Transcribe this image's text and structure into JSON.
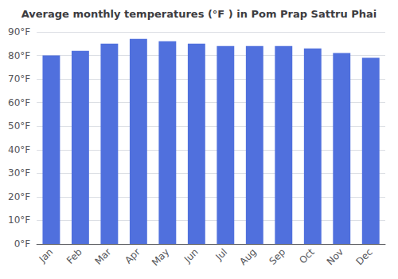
{
  "chart_data": {
    "type": "bar",
    "title": "Average monthly temperatures (°F ) in Pom Prap Sattru Phai",
    "categories": [
      "Jan",
      "Feb",
      "Mar",
      "Apr",
      "May",
      "Jun",
      "Jul",
      "Aug",
      "Sep",
      "Oct",
      "Nov",
      "Dec"
    ],
    "values": [
      80,
      82,
      85,
      87,
      86,
      85,
      84,
      84,
      84,
      83,
      81,
      79
    ],
    "ylim": [
      0,
      90
    ],
    "yticks": [
      {
        "value": 0,
        "label": "0°F"
      },
      {
        "value": 10,
        "label": "10°F"
      },
      {
        "value": 20,
        "label": "20°F"
      },
      {
        "value": 30,
        "label": "30°F"
      },
      {
        "value": 40,
        "label": "40°F"
      },
      {
        "value": 50,
        "label": "50°F"
      },
      {
        "value": 60,
        "label": "60°F"
      },
      {
        "value": 70,
        "label": "70°F"
      },
      {
        "value": 80,
        "label": "80°F"
      },
      {
        "value": 90,
        "label": "90°F"
      }
    ],
    "grid": true
  }
}
